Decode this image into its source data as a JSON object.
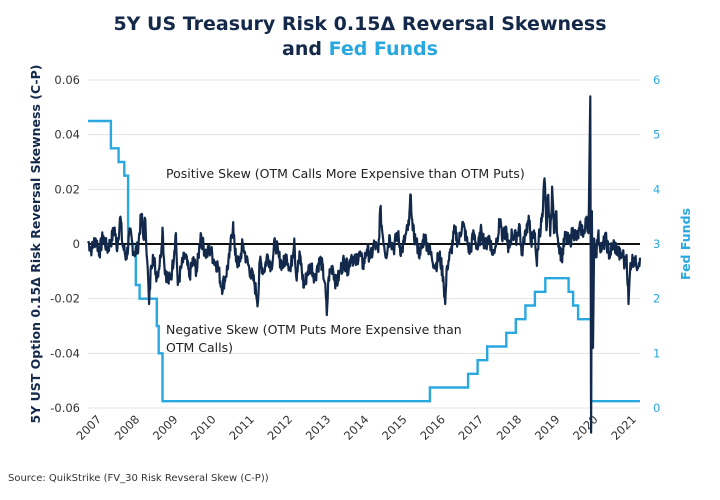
{
  "chart_data": {
    "type": "line",
    "title_line1": "5Y US Treasury Risk 0.15Δ Reversal Skewness",
    "title_line2_prefix": "and ",
    "title_line2_highlight": "Fed Funds",
    "ylabel": "5Y UST Option 0.15Δ Risk Reversal Skewness  (C-P)",
    "y2label": "Fed Funds",
    "ylim": [
      -0.06,
      0.06
    ],
    "y2lim": [
      0,
      6
    ],
    "xlim": [
      2007.0,
      2021.45
    ],
    "yticks": [
      "0.06",
      "0.04",
      "0.02",
      "0",
      "-0.02",
      "-0.04",
      "-0.06"
    ],
    "ytick_values": [
      0.06,
      0.04,
      0.02,
      0,
      -0.02,
      -0.04,
      -0.06
    ],
    "y2ticks": [
      "6",
      "5",
      "4",
      "3",
      "2",
      "1",
      "0"
    ],
    "y2tick_values": [
      6,
      5,
      4,
      3,
      2,
      1,
      0
    ],
    "xticks": [
      "2007",
      "2008",
      "2009",
      "2010",
      "2011",
      "2012",
      "2013",
      "2014",
      "2015",
      "2016",
      "2017",
      "2018",
      "2019",
      "2020",
      "2021"
    ],
    "xtick_values": [
      2007,
      2008,
      2009,
      2010,
      2011,
      2012,
      2013,
      2014,
      2015,
      2016,
      2017,
      2018,
      2019,
      2020,
      2021
    ],
    "grid": true,
    "colors": {
      "skew": "#13294b",
      "fedfunds": "#29a8df",
      "zero_line": "#111111",
      "grid": "#e3e3e3"
    },
    "annotations": [
      {
        "text": "Positive Skew (OTM Calls More Expensive than OTM Puts)"
      },
      {
        "text": "Negative Skew (OTM Puts More Expensive than"
      },
      {
        "text": "OTM Calls)"
      }
    ],
    "series": [
      {
        "name": "Risk Reversal Skewness",
        "axis": "left",
        "points": [
          [
            2007.0,
            0.001
          ],
          [
            2007.1,
            -0.002
          ],
          [
            2007.2,
            0.002
          ],
          [
            2007.3,
            -0.003
          ],
          [
            2007.4,
            0.003
          ],
          [
            2007.5,
            -0.002
          ],
          [
            2007.6,
            0.001
          ],
          [
            2007.7,
            0.006
          ],
          [
            2007.75,
            -0.002
          ],
          [
            2007.85,
            0.01
          ],
          [
            2007.9,
            0.0
          ],
          [
            2008.0,
            -0.005
          ],
          [
            2008.1,
            0.004
          ],
          [
            2008.2,
            -0.003
          ],
          [
            2008.3,
            -0.002
          ],
          [
            2008.4,
            0.011
          ],
          [
            2008.45,
            0.002
          ],
          [
            2008.5,
            0.009
          ],
          [
            2008.55,
            -0.006
          ],
          [
            2008.6,
            -0.022
          ],
          [
            2008.65,
            -0.008
          ],
          [
            2008.7,
            -0.004
          ],
          [
            2008.8,
            -0.012
          ],
          [
            2008.9,
            -0.005
          ],
          [
            2008.95,
            0.006
          ],
          [
            2009.0,
            -0.008
          ],
          [
            2009.1,
            -0.014
          ],
          [
            2009.2,
            -0.01
          ],
          [
            2009.3,
            0.004
          ],
          [
            2009.35,
            -0.015
          ],
          [
            2009.45,
            -0.008
          ],
          [
            2009.55,
            -0.004
          ],
          [
            2009.65,
            -0.012
          ],
          [
            2009.75,
            -0.006
          ],
          [
            2009.85,
            -0.01
          ],
          [
            2009.95,
            0.004
          ],
          [
            2010.0,
            0.0
          ],
          [
            2010.1,
            -0.004
          ],
          [
            2010.2,
            -0.002
          ],
          [
            2010.3,
            -0.006
          ],
          [
            2010.4,
            -0.008
          ],
          [
            2010.5,
            -0.016
          ],
          [
            2010.6,
            -0.012
          ],
          [
            2010.7,
            -0.005
          ],
          [
            2010.8,
            0.008
          ],
          [
            2010.85,
            -0.004
          ],
          [
            2010.95,
            -0.008
          ],
          [
            2011.05,
            0.0
          ],
          [
            2011.15,
            -0.006
          ],
          [
            2011.25,
            -0.01
          ],
          [
            2011.35,
            -0.014
          ],
          [
            2011.45,
            -0.021
          ],
          [
            2011.5,
            -0.006
          ],
          [
            2011.6,
            -0.01
          ],
          [
            2011.7,
            -0.004
          ],
          [
            2011.8,
            -0.008
          ],
          [
            2011.9,
            0.001
          ],
          [
            2012.0,
            -0.005
          ],
          [
            2012.1,
            -0.008
          ],
          [
            2012.2,
            -0.004
          ],
          [
            2012.3,
            -0.01
          ],
          [
            2012.4,
            0.002
          ],
          [
            2012.45,
            -0.012
          ],
          [
            2012.55,
            -0.004
          ],
          [
            2012.65,
            -0.016
          ],
          [
            2012.75,
            -0.01
          ],
          [
            2012.85,
            -0.008
          ],
          [
            2012.95,
            -0.013
          ],
          [
            2013.0,
            -0.008
          ],
          [
            2013.1,
            -0.006
          ],
          [
            2013.2,
            -0.014
          ],
          [
            2013.25,
            -0.026
          ],
          [
            2013.3,
            -0.012
          ],
          [
            2013.4,
            -0.008
          ],
          [
            2013.5,
            -0.015
          ],
          [
            2013.6,
            -0.01
          ],
          [
            2013.7,
            -0.006
          ],
          [
            2013.8,
            -0.009
          ],
          [
            2013.9,
            -0.004
          ],
          [
            2014.0,
            -0.007
          ],
          [
            2014.1,
            -0.003
          ],
          [
            2014.2,
            -0.008
          ],
          [
            2014.3,
            -0.002
          ],
          [
            2014.4,
            -0.005
          ],
          [
            2014.5,
            0.0
          ],
          [
            2014.6,
            -0.003
          ],
          [
            2014.65,
            0.013
          ],
          [
            2014.7,
            0.005
          ],
          [
            2014.8,
            -0.004
          ],
          [
            2014.9,
            0.003
          ],
          [
            2015.0,
            -0.002
          ],
          [
            2015.1,
            0.004
          ],
          [
            2015.2,
            -0.003
          ],
          [
            2015.3,
            0.002
          ],
          [
            2015.4,
            0.007
          ],
          [
            2015.45,
            0.018
          ],
          [
            2015.5,
            0.005
          ],
          [
            2015.6,
            0.0
          ],
          [
            2015.7,
            -0.004
          ],
          [
            2015.8,
            0.003
          ],
          [
            2015.9,
            -0.001
          ],
          [
            2016.0,
            -0.005
          ],
          [
            2016.1,
            -0.008
          ],
          [
            2016.2,
            -0.004
          ],
          [
            2016.3,
            -0.012
          ],
          [
            2016.35,
            -0.022
          ],
          [
            2016.4,
            -0.008
          ],
          [
            2016.5,
            -0.003
          ],
          [
            2016.6,
            0.005
          ],
          [
            2016.7,
            0.0
          ],
          [
            2016.8,
            0.008
          ],
          [
            2016.9,
            0.002
          ],
          [
            2017.0,
            -0.003
          ],
          [
            2017.1,
            0.004
          ],
          [
            2017.2,
            -0.002
          ],
          [
            2017.3,
            0.005
          ],
          [
            2017.4,
            -0.001
          ],
          [
            2017.5,
            0.003
          ],
          [
            2017.6,
            -0.004
          ],
          [
            2017.7,
            0.002
          ],
          [
            2017.8,
            0.009
          ],
          [
            2017.85,
            0.001
          ],
          [
            2017.95,
            0.006
          ],
          [
            2018.0,
            -0.003
          ],
          [
            2018.1,
            0.004
          ],
          [
            2018.2,
            0.002
          ],
          [
            2018.3,
            0.007
          ],
          [
            2018.35,
            -0.004
          ],
          [
            2018.45,
            0.005
          ],
          [
            2018.55,
            0.008
          ],
          [
            2018.6,
            0.001
          ],
          [
            2018.7,
            0.004
          ],
          [
            2018.75,
            -0.008
          ],
          [
            2018.8,
            0.003
          ],
          [
            2018.9,
            0.01
          ],
          [
            2018.95,
            0.024
          ],
          [
            2019.0,
            0.005
          ],
          [
            2019.05,
            0.018
          ],
          [
            2019.1,
            0.003
          ],
          [
            2019.15,
            0.021
          ],
          [
            2019.2,
            0.004
          ],
          [
            2019.25,
            0.012
          ],
          [
            2019.3,
            0.002
          ],
          [
            2019.4,
            -0.005
          ],
          [
            2019.5,
            0.003
          ],
          [
            2019.6,
            0.0
          ],
          [
            2019.7,
            0.005
          ],
          [
            2019.8,
            0.002
          ],
          [
            2019.9,
            0.006
          ],
          [
            2020.0,
            0.004
          ],
          [
            2020.05,
            0.01
          ],
          [
            2020.1,
            0.004
          ],
          [
            2020.15,
            0.054
          ],
          [
            2020.17,
            -0.069
          ],
          [
            2020.19,
            0.012
          ],
          [
            2020.22,
            -0.038
          ],
          [
            2020.25,
            0.002
          ],
          [
            2020.3,
            -0.004
          ],
          [
            2020.35,
            0.003
          ],
          [
            2020.45,
            -0.002
          ],
          [
            2020.55,
            0.002
          ],
          [
            2020.65,
            -0.004
          ],
          [
            2020.75,
            0.0
          ],
          [
            2020.85,
            -0.002
          ],
          [
            2020.95,
            -0.005
          ],
          [
            2021.0,
            -0.003
          ],
          [
            2021.05,
            -0.008
          ],
          [
            2021.1,
            -0.004
          ],
          [
            2021.15,
            -0.022
          ],
          [
            2021.2,
            -0.007
          ],
          [
            2021.3,
            -0.005
          ],
          [
            2021.35,
            -0.008
          ],
          [
            2021.45,
            -0.005
          ]
        ]
      },
      {
        "name": "Fed Funds",
        "axis": "right",
        "step": true,
        "points": [
          [
            2007.0,
            5.25
          ],
          [
            2007.6,
            4.75
          ],
          [
            2007.8,
            4.5
          ],
          [
            2007.95,
            4.25
          ],
          [
            2008.05,
            3.0
          ],
          [
            2008.25,
            2.25
          ],
          [
            2008.35,
            2.0
          ],
          [
            2008.8,
            1.5
          ],
          [
            2008.85,
            1.0
          ],
          [
            2008.95,
            0.125
          ],
          [
            2015.95,
            0.375
          ],
          [
            2016.95,
            0.625
          ],
          [
            2017.2,
            0.875
          ],
          [
            2017.45,
            1.125
          ],
          [
            2017.95,
            1.375
          ],
          [
            2018.2,
            1.625
          ],
          [
            2018.45,
            1.875
          ],
          [
            2018.7,
            2.125
          ],
          [
            2018.97,
            2.375
          ],
          [
            2019.58,
            2.125
          ],
          [
            2019.7,
            1.875
          ],
          [
            2019.83,
            1.625
          ],
          [
            2020.17,
            0.125
          ],
          [
            2021.45,
            0.125
          ]
        ]
      }
    ]
  },
  "footer": {
    "source": "Source: QuikStrike (FV_30 Risk Revseral Skew (C-P))"
  }
}
